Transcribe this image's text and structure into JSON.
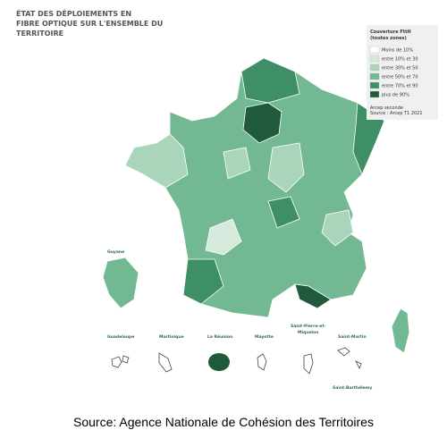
{
  "title": [
    "ÉTAT DES DÉPLOIEMENTS EN",
    "FIBRE OPTIQUE SUR L'ENSEMBLE DU",
    "TERRITOIRE"
  ],
  "legend": {
    "title": [
      "Couverture FttH",
      "(toutes zones)"
    ],
    "items": [
      {
        "label": "Moins de 10%",
        "color": "#ffffff"
      },
      {
        "label": "entre 10% et 30",
        "color": "#d3eadd"
      },
      {
        "label": "entre 30% et 50",
        "color": "#a9d5bb"
      },
      {
        "label": "entre 50% et 70",
        "color": "#72b893"
      },
      {
        "label": "entre 70% et 90",
        "color": "#3f8f66"
      },
      {
        "label": "plus de 90%",
        "color": "#1f5a3c"
      }
    ],
    "note": [
      "Arcep seconde",
      "Source : Arcep T1 2021"
    ]
  },
  "territories": [
    "Guyane",
    "Guadeloupe",
    "Martinique",
    "La Réunion",
    "Mayotte",
    "Saint-Pierre-et-",
    "Miquelon",
    "Saint-Martin",
    "Saint-Barthélemy"
  ],
  "source": "Source: Agence Nationale de Cohésion des Territoires"
}
